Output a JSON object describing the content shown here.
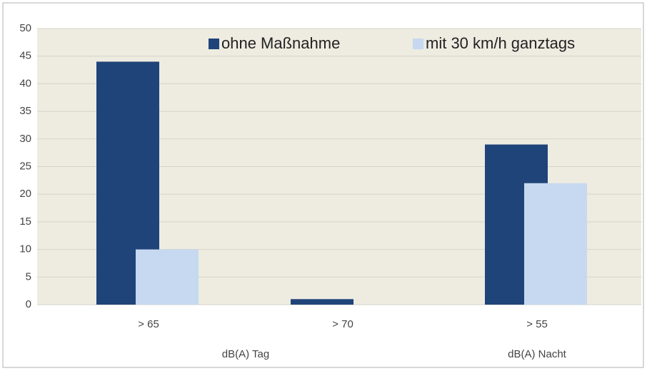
{
  "chart_data": {
    "type": "bar",
    "categories": [
      "> 65",
      "> 70",
      "> 55"
    ],
    "groups": [
      {
        "label": "dB(A) Tag",
        "categories": [
          "> 65",
          "> 70"
        ]
      },
      {
        "label": "dB(A) Nacht",
        "categories": [
          "> 55"
        ]
      }
    ],
    "series": [
      {
        "name": "ohne Maßnahme",
        "color": "#1f4479",
        "values": [
          44,
          1,
          29
        ]
      },
      {
        "name": "mit 30 km/h ganztags",
        "color": "#c6d9f1",
        "values": [
          10,
          0,
          22
        ]
      }
    ],
    "ylim": [
      0,
      50
    ],
    "yticks": [
      0,
      5,
      10,
      15,
      20,
      25,
      30,
      35,
      40,
      45,
      50
    ],
    "grid": true,
    "legend": "top"
  }
}
